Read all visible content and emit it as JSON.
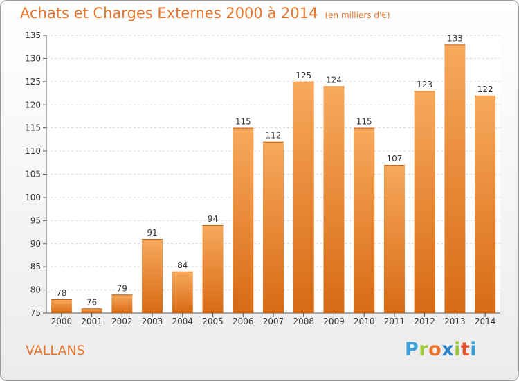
{
  "chart": {
    "title": "Achats et Charges Externes 2000 à 2014",
    "unit": "(en milliers d'€)",
    "place": "VALLANS",
    "logo": {
      "letters": [
        "P",
        "r",
        "o",
        "x",
        "i",
        "t",
        "i"
      ],
      "colors": [
        "#3aa0d8",
        "#9cc83c",
        "#e8762c",
        "#2d7fc8",
        "#9cc83c",
        "#e8542c",
        "#3aa0d8"
      ]
    }
  },
  "chart_data": {
    "type": "bar",
    "title": "Achats et Charges Externes 2000 à 2014",
    "subtitle": "(en milliers d'€)",
    "categories": [
      "2000",
      "2001",
      "2002",
      "2003",
      "2004",
      "2005",
      "2006",
      "2007",
      "2008",
      "2009",
      "2010",
      "2011",
      "2012",
      "2013",
      "2014"
    ],
    "values": [
      78,
      76,
      79,
      91,
      84,
      94,
      115,
      112,
      125,
      124,
      115,
      107,
      123,
      133,
      122
    ],
    "ylim": [
      75,
      135
    ],
    "yticks": [
      75,
      80,
      85,
      90,
      95,
      100,
      105,
      110,
      115,
      120,
      125,
      130,
      135
    ],
    "xlabel": "",
    "ylabel": "",
    "grid": true,
    "bar_color": "#e8822c"
  }
}
